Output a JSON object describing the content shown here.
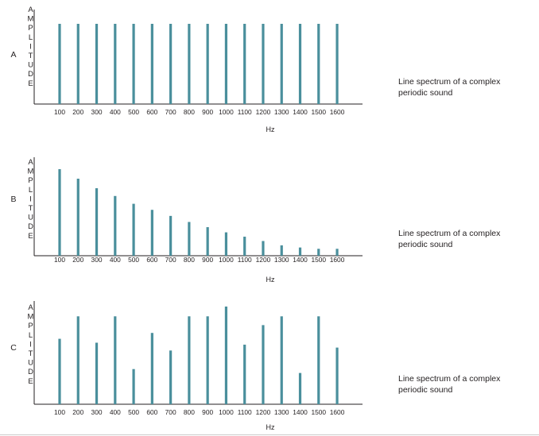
{
  "colors": {
    "bar": "#4a8f9c",
    "axis": "#231f20"
  },
  "chart_data": [
    {
      "type": "bar",
      "panel_label": "A",
      "ylabel": "AMPLITUDE",
      "xlabel": "Hz",
      "caption_lines": [
        "Line spectrum of a complex",
        "periodic sound"
      ],
      "categories": [
        "100",
        "200",
        "300",
        "400",
        "500",
        "600",
        "700",
        "800",
        "900",
        "1000",
        "1100",
        "1200",
        "1300",
        "1400",
        "1500",
        "1600"
      ],
      "values": [
        1,
        1,
        1,
        1,
        1,
        1,
        1,
        1,
        1,
        1,
        1,
        1,
        1,
        1,
        1,
        1
      ],
      "ylim": [
        0,
        1.0
      ],
      "grid": false
    },
    {
      "type": "bar",
      "panel_label": "B",
      "ylabel": "AMPLITUDE",
      "xlabel": "Hz",
      "caption_lines": [
        "Line spectrum of a complex",
        "periodic sound"
      ],
      "categories": [
        "100",
        "200",
        "300",
        "400",
        "500",
        "600",
        "700",
        "800",
        "900",
        "1000",
        "1100",
        "1200",
        "1300",
        "1400",
        "1500",
        "1600"
      ],
      "values": [
        1.0,
        0.89,
        0.78,
        0.69,
        0.6,
        0.53,
        0.46,
        0.39,
        0.33,
        0.27,
        0.22,
        0.17,
        0.12,
        0.095,
        0.08,
        0.08
      ],
      "ylim": [
        0,
        1.0
      ],
      "grid": false
    },
    {
      "type": "bar",
      "panel_label": "C",
      "ylabel": "AMPLITUDE",
      "xlabel": "Hz",
      "caption_lines": [
        "Line spectrum of a complex",
        "periodic sound"
      ],
      "categories": [
        "100",
        "200",
        "300",
        "400",
        "500",
        "600",
        "700",
        "800",
        "900",
        "1000",
        "1100",
        "1200",
        "1300",
        "1400",
        "1500",
        "1600"
      ],
      "values": [
        0.67,
        0.9,
        0.63,
        0.9,
        0.36,
        0.73,
        0.55,
        0.9,
        0.9,
        1.0,
        0.61,
        0.81,
        0.9,
        0.32,
        0.9,
        0.58
      ],
      "ylim": [
        0,
        1.0
      ],
      "grid": false
    }
  ]
}
